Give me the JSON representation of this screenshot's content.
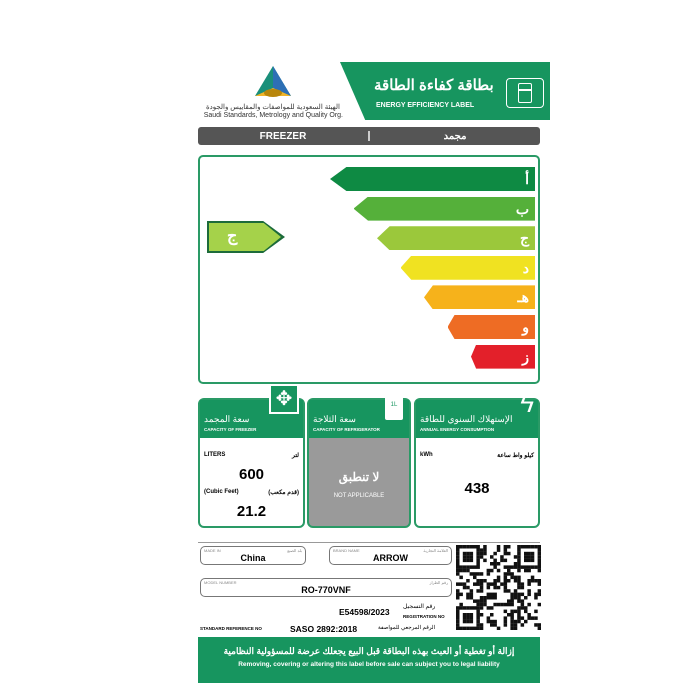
{
  "header": {
    "org_ar": "الهيئة السعودية للمواصفات والمقاييس والجودة",
    "org_en": "Saudi Standards, Metrology and Quality Org.",
    "logo_text": "SASO",
    "title_ar": "بطاقة كفاءة الطاقة",
    "title_en": "ENERGY EFFICIENCY LABEL",
    "icon": "refrigerator-icon"
  },
  "category": {
    "en": "FREEZER",
    "ar": "مجمد"
  },
  "rating": {
    "classes": [
      {
        "label": "أ",
        "color": "#0e8a43"
      },
      {
        "label": "ب",
        "color": "#55b03a"
      },
      {
        "label": "ج",
        "color": "#9bc83b"
      },
      {
        "label": "د",
        "color": "#f0e221"
      },
      {
        "label": "هـ",
        "color": "#f6b21b"
      },
      {
        "label": "و",
        "color": "#ee6c24"
      },
      {
        "label": "ز",
        "color": "#e3202a"
      }
    ],
    "current": "ج",
    "current_color": "#a5d24a"
  },
  "freezer": {
    "title_ar": "سعة المجمد",
    "title_en": "CAPACITY OF FREEZER",
    "unit_en": "LITERS",
    "unit_ar": "لتر",
    "liters": "600",
    "cf_en": "(Cubic Feet)",
    "cf_ar": "(قدم مكعب)",
    "cubic_feet": "21.2",
    "icon": "expand-arrows-icon"
  },
  "refrigerator": {
    "title_ar": "سعة الثلاجة",
    "title_en": "CAPACITY OF REFRIGERATOR",
    "na_ar": "لا تنطبق",
    "na_en": "NOT APPLICABLE",
    "icon": "milk-carton-icon",
    "icon_text": "1L"
  },
  "energy": {
    "title_ar": "الإستهلاك السنوي للطاقة",
    "title_en": "ANNUAL ENERGY CONSUMPTION",
    "unit_en": "kWh",
    "unit_ar": "كيلو واط ساعة",
    "value": "438",
    "icon": "lightning-icon"
  },
  "info": {
    "made_in_label_en": "MADE IN",
    "made_in_label_ar": "بلد الصنع",
    "made_in": "China",
    "brand_label_en": "BRAND NAME",
    "brand_label_ar": "العلامة التجارية",
    "brand": "ARROW",
    "model_label_en": "MODEL NUMBER",
    "model_label_ar": "رقم الطراز",
    "model": "RO-770VNF",
    "reg_no": "E54598/2023",
    "reg_label_ar": "رقم التسجيل",
    "reg_label_en": "REGISTRATION NO",
    "std_label_en": "STANDARD REFERENCE NO",
    "std": "SASO 2892:2018",
    "std_label_ar": "الرقم المرجعي للمواصفة"
  },
  "footer": {
    "ar": "إزالة أو تغطية أو العبث بهذه البطاقة قبل البيع يجعلك عرضة للمسؤولية النظامية",
    "en": "Removing, covering or altering this label before sale can subject you to legal liability"
  }
}
